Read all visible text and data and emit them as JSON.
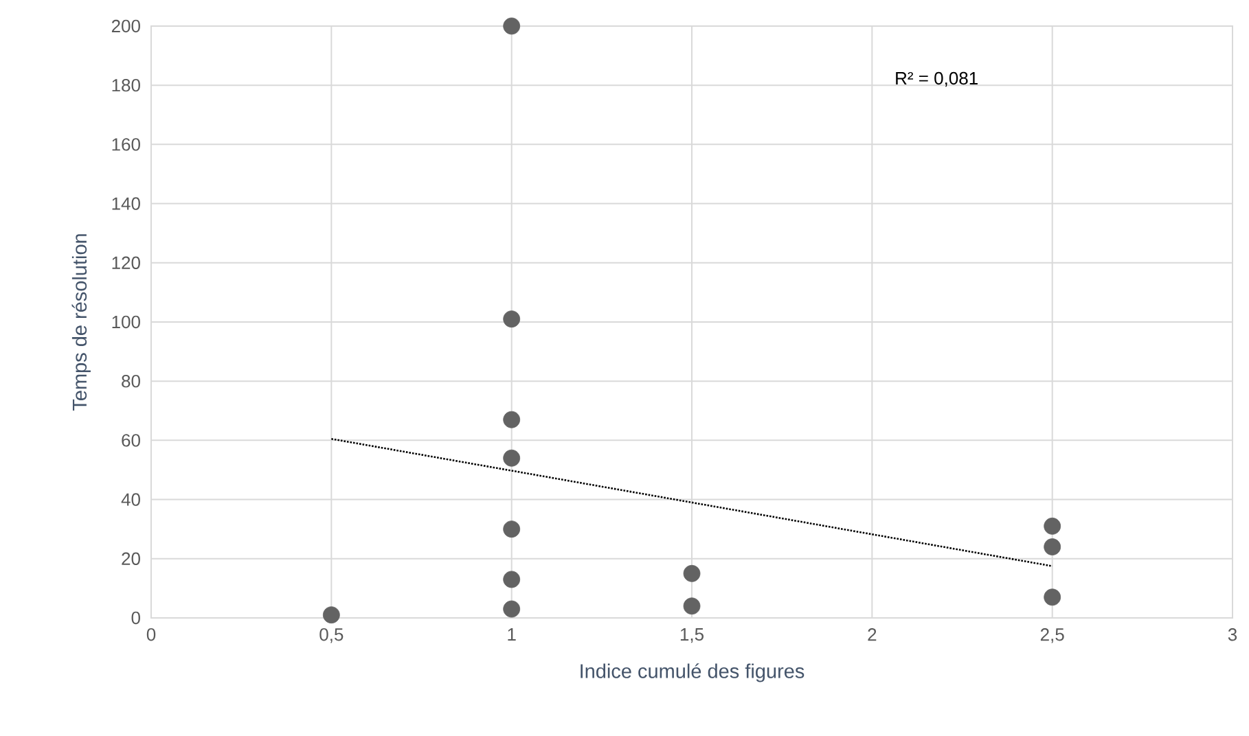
{
  "chart_data": {
    "type": "scatter",
    "xlabel": "Indice cumulé des figures",
    "ylabel": "Temps de résolution",
    "annotations": [
      "R² = 0,081"
    ],
    "series": [
      {
        "color": "#636363",
        "marker": "circle",
        "x": [
          0.5,
          1,
          1,
          1,
          1,
          1,
          1,
          1,
          1.5,
          1.5,
          2.5,
          2.5,
          2.5
        ],
        "values": [
          1,
          200,
          101,
          67,
          54,
          30,
          13,
          3,
          15,
          4,
          31,
          24,
          7
        ]
      },
      {
        "type": "line",
        "color": "#000000",
        "marker": "none",
        "line_style": "dotted",
        "x": [
          0.5,
          2.5
        ],
        "values": [
          60.5,
          17.5
        ]
      }
    ],
    "xlim": [
      0,
      3
    ],
    "ylim": [
      0,
      200
    ],
    "xticks": [
      0,
      {
        "value": 0.5,
        "label": "0,5"
      },
      1,
      {
        "value": 1.5,
        "label": "1,5"
      },
      2,
      {
        "value": 2.5,
        "label": "2,5"
      },
      3
    ],
    "yticks": [
      0,
      20,
      40,
      60,
      80,
      100,
      120,
      140,
      160,
      180,
      200
    ],
    "grid": true
  }
}
